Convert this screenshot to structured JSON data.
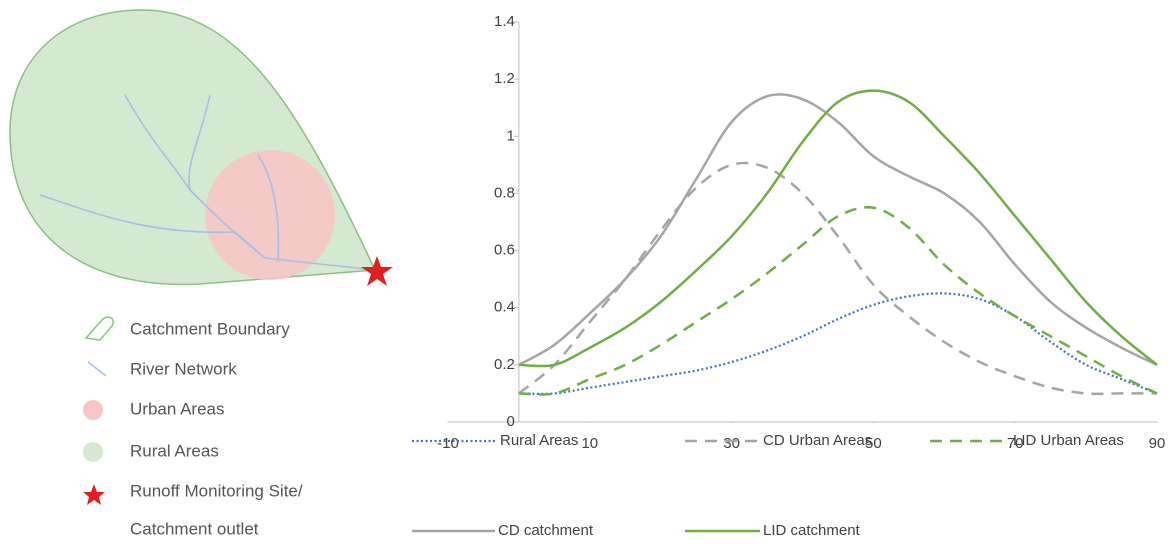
{
  "diagram": {
    "legend": [
      "Catchment Boundary",
      "River Network",
      "Urban Areas",
      "Rural Areas",
      "Runoff Monitoring Site/",
      "Catchment outlet"
    ]
  },
  "chart_data": {
    "type": "line",
    "x": [
      0,
      5,
      10,
      15,
      20,
      25,
      30,
      35,
      40,
      45,
      50,
      55,
      60,
      65,
      70,
      75,
      80,
      85,
      90
    ],
    "series": [
      {
        "name": "Rural Areas",
        "color": "#4472c4",
        "style": "dotted",
        "values": [
          0.1,
          0.1,
          0.12,
          0.14,
          0.16,
          0.18,
          0.21,
          0.25,
          0.3,
          0.36,
          0.41,
          0.44,
          0.45,
          0.43,
          0.37,
          0.28,
          0.2,
          0.15,
          0.1
        ]
      },
      {
        "name": "CD Urban Areas",
        "color": "#a5a5a5",
        "style": "dashed",
        "values": [
          0.1,
          0.2,
          0.35,
          0.5,
          0.67,
          0.82,
          0.9,
          0.89,
          0.8,
          0.65,
          0.48,
          0.37,
          0.28,
          0.21,
          0.16,
          0.12,
          0.1,
          0.1,
          0.1
        ]
      },
      {
        "name": "LID Urban Areas",
        "color": "#70ad47",
        "style": "dashed",
        "values": [
          0.1,
          0.1,
          0.15,
          0.2,
          0.27,
          0.35,
          0.43,
          0.52,
          0.62,
          0.72,
          0.75,
          0.68,
          0.55,
          0.45,
          0.37,
          0.3,
          0.23,
          0.16,
          0.1
        ]
      },
      {
        "name": "CD catchment",
        "color": "#a5a5a5",
        "style": "solid",
        "values": [
          0.2,
          0.27,
          0.38,
          0.5,
          0.65,
          0.85,
          1.05,
          1.14,
          1.13,
          1.05,
          0.93,
          0.86,
          0.8,
          0.7,
          0.55,
          0.42,
          0.33,
          0.26,
          0.2
        ]
      },
      {
        "name": "LID catchment",
        "color": "#70ad47",
        "style": "solid",
        "values": [
          0.2,
          0.2,
          0.26,
          0.33,
          0.42,
          0.53,
          0.65,
          0.8,
          0.98,
          1.12,
          1.16,
          1.12,
          1.0,
          0.87,
          0.72,
          0.57,
          0.42,
          0.3,
          0.2
        ]
      }
    ],
    "xlim": [
      -10,
      90
    ],
    "xticks": [
      -10,
      10,
      30,
      50,
      70,
      90
    ],
    "ylim": [
      0,
      1.4
    ],
    "yticks": [
      0,
      0.2,
      0.4,
      0.6,
      0.8,
      1,
      1.2,
      1.4
    ],
    "grid": false
  }
}
